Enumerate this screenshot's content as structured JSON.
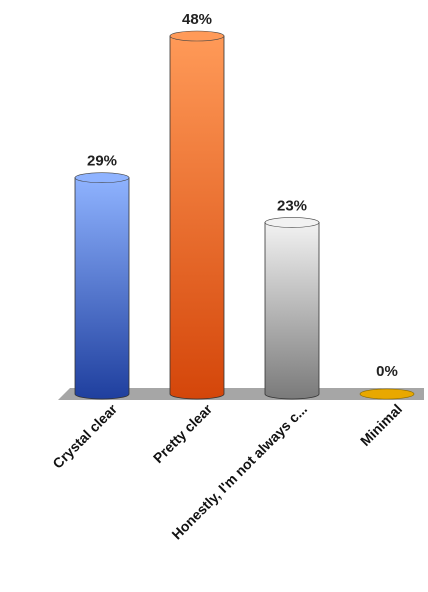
{
  "chart_data": {
    "type": "bar",
    "title": "",
    "xlabel": "",
    "ylabel": "",
    "categories": [
      "Crystal clear",
      "Pretty clear",
      "Honestly, I'm not always c...",
      "Minimal"
    ],
    "values": [
      29,
      48,
      23,
      0
    ],
    "value_labels": [
      "29%",
      "48%",
      "23%",
      "0%"
    ],
    "ylim": [
      0,
      48
    ],
    "grid": false,
    "legend": "none",
    "colors": [
      {
        "light": "#8fb3ff",
        "dark": "#1f3f9e"
      },
      {
        "light": "#ff9a58",
        "dark": "#d4460a"
      },
      {
        "light": "#f2f2f2",
        "dark": "#7a7a7a"
      },
      {
        "light": "#ffd24a",
        "dark": "#e8a800"
      }
    ],
    "floor_color": "#a6a6a6"
  }
}
